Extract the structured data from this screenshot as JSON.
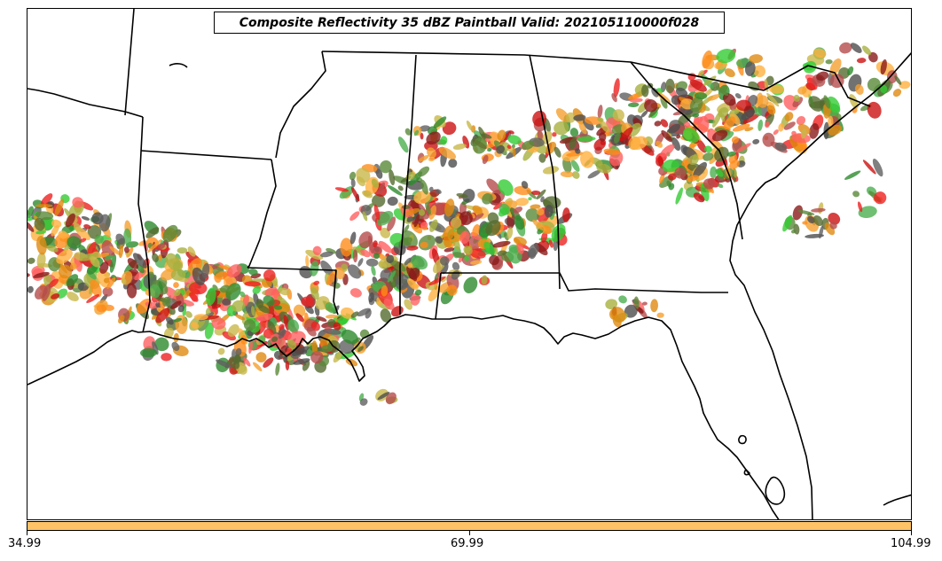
{
  "title": "Composite Reflectivity 35 dBZ Paintball Valid: 202105110000f028",
  "colorbar": {
    "color": "#ffc266",
    "tick_labels": [
      "34.99",
      "69.99",
      "104.99"
    ]
  },
  "map": {
    "region": "Southeastern United States",
    "field": "composite reflectivity 35 dBZ paintball",
    "member_colors": [
      "#ff6060",
      "#ee2222",
      "#cc1111",
      "#b54c4c",
      "#8b1a1a",
      "#ff8c1a",
      "#f5a030",
      "#ffb040",
      "#e08a10",
      "#33cc33",
      "#4caf50",
      "#2e8b2e",
      "#5a8a3a",
      "#556b2f",
      "#a8b040",
      "#c8b84a",
      "#606060",
      "#4d4d4d"
    ],
    "background": "#ffffff",
    "boundary_color": "#000000"
  }
}
